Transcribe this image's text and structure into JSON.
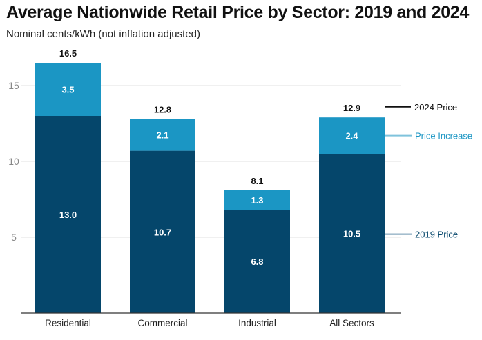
{
  "chart_data": {
    "type": "bar",
    "stacked": true,
    "title": "Average Nationwide Retail Price by Sector: 2019 and 2024",
    "subtitle": "Nominal cents/kWh (not inflation adjusted)",
    "xlabel": "",
    "ylabel": "",
    "ylim": [
      0,
      17
    ],
    "yticks": [
      5,
      10,
      15
    ],
    "grid": true,
    "categories": [
      "Residential",
      "Commercial",
      "Industrial",
      "All Sectors"
    ],
    "series": [
      {
        "name": "2019 Price",
        "color": "#05466b",
        "values": [
          13.0,
          10.7,
          6.8,
          10.5
        ]
      },
      {
        "name": "Price Increase",
        "color": "#1b96c4",
        "values": [
          3.5,
          2.1,
          1.3,
          2.4
        ]
      }
    ],
    "totals": {
      "name": "2024 Price",
      "color": "#111111",
      "values": [
        16.5,
        12.8,
        8.1,
        12.9
      ]
    },
    "legend_position": "right (inline labels)",
    "legend": [
      {
        "label": "2024 Price",
        "color": "#111111",
        "value_ref": 13.6
      },
      {
        "label": "Price Increase",
        "color": "#1b96c4",
        "value_ref": 11.7
      },
      {
        "label": "2019 Price",
        "color": "#05466b",
        "value_ref": 5.2
      }
    ]
  }
}
